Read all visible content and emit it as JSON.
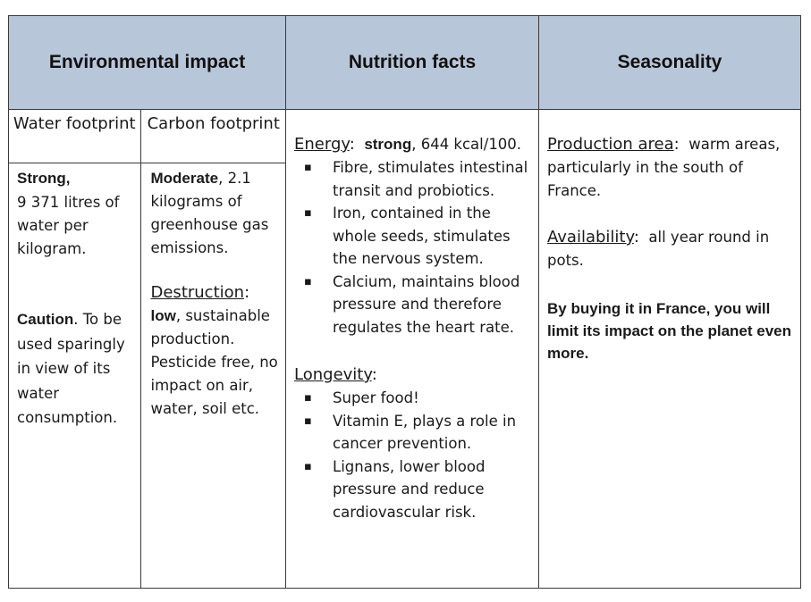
{
  "headers": {
    "environmental": "Environmental impact",
    "nutrition": "Nutrition facts",
    "seasonality": "Seasonality"
  },
  "water": {
    "title": "Water footprint",
    "level": "Strong,",
    "amount": "9 371 litres of water per kilogram.",
    "caution_label": "Caution",
    "caution_text": ". To be used sparingly in view of its water consumption."
  },
  "carbon": {
    "title": "Carbon footprint",
    "level": "Moderate",
    "amount": ", 2.1 kilograms of greenhouse gas emissions.",
    "destruction_label": "Destruction",
    "destruction_level": "low",
    "destruction_text": ", sustainable production. Pesticide free, no impact on air, water, soil etc."
  },
  "nutrition": {
    "energy_label": "Energy",
    "energy_level": "strong",
    "energy_value": ", 644 kcal/100.",
    "energy_items": [
      "Fibre, stimulates intestinal transit and probiotics.",
      "Iron, contained in the whole seeds, stimulates the nervous system.",
      "Calcium, maintains blood pressure and therefore regulates the heart rate."
    ],
    "longevity_label": "Longevity",
    "longevity_items": [
      "Super food!",
      "Vitamin E, plays a role in cancer prevention.",
      "Lignans, lower blood pressure and reduce cardiovascular risk."
    ]
  },
  "seasonality": {
    "production_label": "Production area",
    "production_text": "warm areas, particularly in the south of France.",
    "availability_label": "Availability",
    "availability_text": "all year round in pots.",
    "note": "By buying it in France, you will limit its impact on the planet even more."
  }
}
